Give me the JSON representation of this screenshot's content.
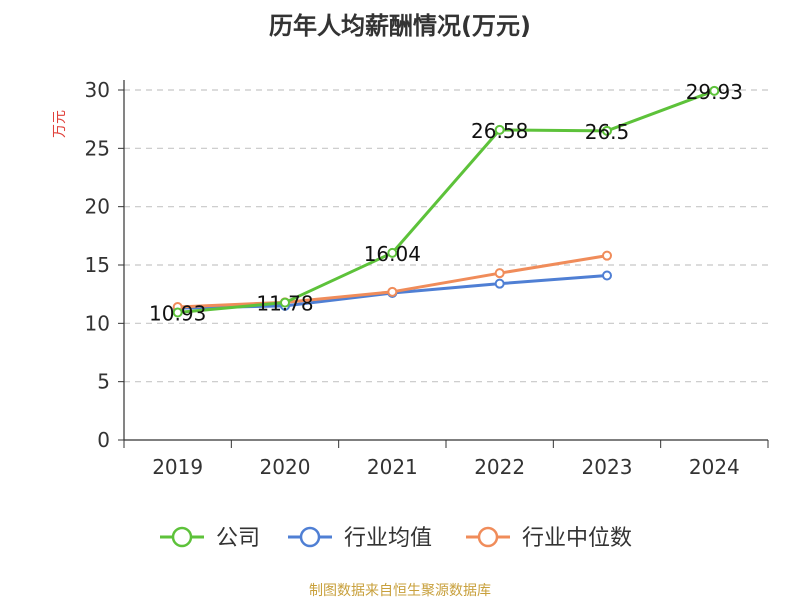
{
  "chart_title": "历年人均薪酬情况(万元)",
  "footer": "制图数据来自恒生聚源数据库",
  "chart_data": {
    "type": "line",
    "title": "历年人均薪酬情况(万元)",
    "ylabel": "万元",
    "xlabel": "",
    "categories": [
      "2019",
      "2020",
      "2021",
      "2022",
      "2023",
      "2024"
    ],
    "ylim": [
      0,
      30
    ],
    "yticks": [
      0,
      5,
      10,
      15,
      20,
      25,
      30
    ],
    "grid": true,
    "legend_position": "bottom",
    "series": [
      {
        "name": "公司",
        "color": "#5dc23a",
        "values": [
          10.93,
          11.78,
          16.04,
          26.58,
          26.5,
          29.93
        ],
        "labels": [
          "10.93",
          "11.78",
          "16.04",
          "26.58",
          "26.5",
          "29.93"
        ]
      },
      {
        "name": "行业均值",
        "color": "#4f7fd4",
        "values": [
          11.3,
          11.5,
          12.6,
          13.4,
          14.1,
          null
        ]
      },
      {
        "name": "行业中位数",
        "color": "#f08c5a",
        "values": [
          11.4,
          11.8,
          12.7,
          14.3,
          15.8,
          null
        ]
      }
    ]
  }
}
